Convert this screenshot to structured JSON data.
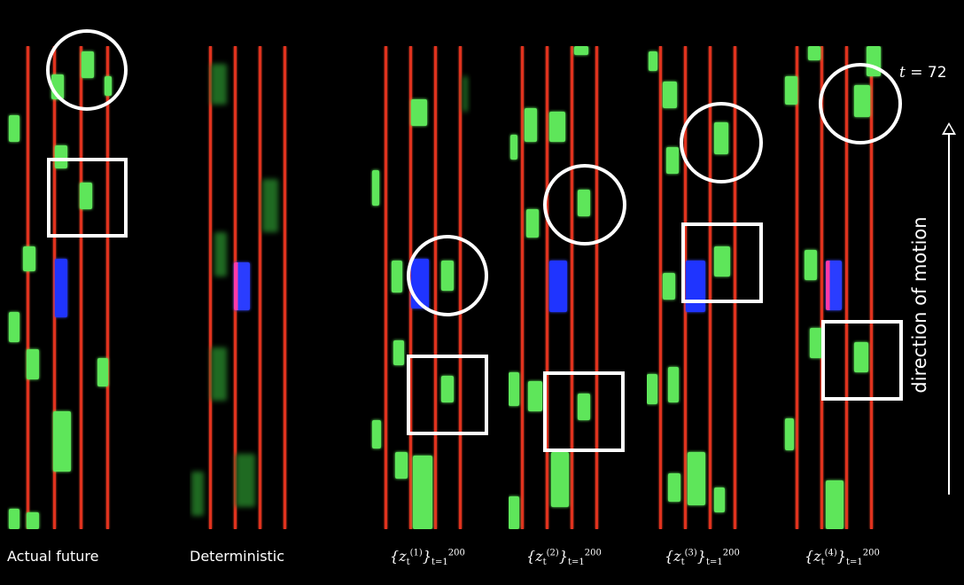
{
  "time_label": {
    "t": "t",
    "rest": " = 72"
  },
  "motion_label": "direction of motion",
  "panels": [
    {
      "id": "actual",
      "caption_text": "Actual future"
    },
    {
      "id": "det",
      "caption_text": "Deterministic"
    },
    {
      "id": "z1",
      "caption_math": {
        "z": "z",
        "sup": "(1)",
        "sub": "t",
        "upper": "200",
        "lower": "t=1"
      }
    },
    {
      "id": "z2",
      "caption_math": {
        "z": "z",
        "sup": "(2)",
        "sub": "t",
        "upper": "200",
        "lower": "t=1"
      }
    },
    {
      "id": "z3",
      "caption_math": {
        "z": "z",
        "sup": "(3)",
        "sub": "t",
        "upper": "200",
        "lower": "t=1"
      }
    },
    {
      "id": "z4",
      "caption_math": {
        "z": "z",
        "sup": "(4)",
        "sub": "t",
        "upper": "200",
        "lower": "t=1"
      }
    }
  ],
  "colors": {
    "lane": "#e0321e",
    "vehicle": "#5ee65a",
    "ego": "#1f34ff",
    "annotation": "#ffffff",
    "background": "#000000"
  }
}
